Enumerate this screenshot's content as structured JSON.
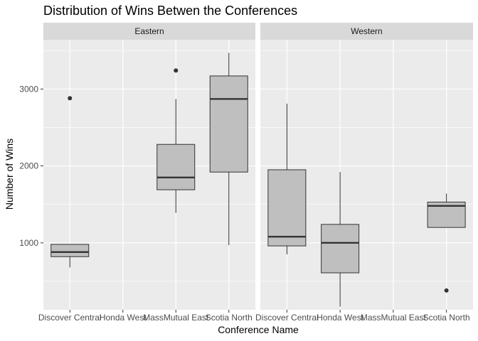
{
  "chart_data": {
    "type": "boxplot",
    "title": "Distribution of Wins Betwen the Conferences",
    "xlabel": "Conference Name",
    "ylabel": "Number of Wins",
    "ylim": [
      130,
      3640
    ],
    "yticks": [
      1000,
      2000,
      3000
    ],
    "ytick_labels": [
      "1000",
      "2000",
      "3000"
    ],
    "categories": [
      "Discover Central",
      "Honda West",
      "MassMutual East",
      "Scotia North"
    ],
    "facets": [
      {
        "name": "Eastern",
        "boxes": [
          {
            "category": "Discover Central",
            "whisker_low": 680,
            "q1": 820,
            "median": 880,
            "q3": 980,
            "whisker_high": 980,
            "outliers": [
              2880
            ]
          },
          {
            "category": "MassMutual East",
            "whisker_low": 1390,
            "q1": 1690,
            "median": 1850,
            "q3": 2280,
            "whisker_high": 2870,
            "outliers": [
              3240
            ]
          },
          {
            "category": "Scotia North",
            "whisker_low": 970,
            "q1": 1920,
            "median": 2870,
            "q3": 3170,
            "whisker_high": 3470,
            "outliers": []
          }
        ]
      },
      {
        "name": "Western",
        "boxes": [
          {
            "category": "Discover Central",
            "whisker_low": 850,
            "q1": 960,
            "median": 1080,
            "q3": 1950,
            "whisker_high": 2810,
            "outliers": []
          },
          {
            "category": "Honda West",
            "whisker_low": 170,
            "q1": 610,
            "median": 1000,
            "q3": 1240,
            "whisker_high": 1920,
            "outliers": []
          },
          {
            "category": "Scotia North",
            "whisker_low": 1200,
            "q1": 1200,
            "median": 1480,
            "q3": 1530,
            "whisker_high": 1640,
            "outliers": [
              380
            ]
          }
        ]
      }
    ],
    "grid": true,
    "legend": "none",
    "colors": {
      "panel_bg": "#ebebeb",
      "strip_bg": "#d9d9d9",
      "gridline": "#ffffff",
      "box_fill": "#bfbfbf",
      "box_stroke": "#333333"
    }
  }
}
